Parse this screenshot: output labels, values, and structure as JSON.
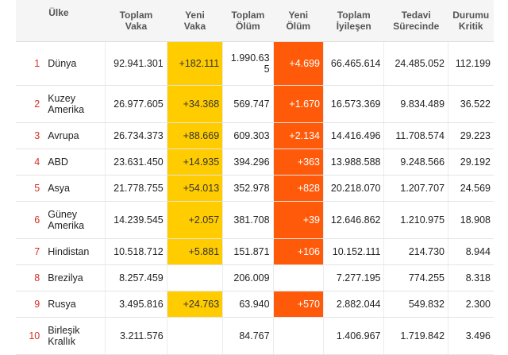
{
  "table": {
    "headers": {
      "country": "Ülke",
      "total_cases": [
        "Toplam",
        "Vaka"
      ],
      "new_cases": [
        "Yeni",
        "Vaka"
      ],
      "total_deaths": [
        "Toplam",
        "Ölüm"
      ],
      "new_deaths": [
        "Yeni",
        "Ölüm"
      ],
      "total_recovered": [
        "Toplam",
        "İyileşen"
      ],
      "active": [
        "Tedavi",
        "Sürecinde"
      ],
      "critical": [
        "Durumu",
        "Kritik"
      ]
    },
    "rows": [
      {
        "rank": "1",
        "country": [
          "Dünya"
        ],
        "total_cases": "92.941.301",
        "new_cases": "+182.111",
        "total_deaths": [
          "1.990.63",
          "5"
        ],
        "new_deaths": "+4.699",
        "total_recovered": "66.465.614",
        "active": "24.485.052",
        "critical": "112.199"
      },
      {
        "rank": "2",
        "country": [
          "Kuzey",
          "Amerika"
        ],
        "total_cases": "26.977.605",
        "new_cases": "+34.368",
        "total_deaths": [
          "569.747"
        ],
        "new_deaths": "+1.670",
        "total_recovered": "16.573.369",
        "active": "9.834.489",
        "critical": "36.522"
      },
      {
        "rank": "3",
        "country": [
          "Avrupa"
        ],
        "total_cases": "26.734.373",
        "new_cases": "+88.669",
        "total_deaths": [
          "609.303"
        ],
        "new_deaths": "+2.134",
        "total_recovered": "14.416.496",
        "active": "11.708.574",
        "critical": "29.223"
      },
      {
        "rank": "4",
        "country": [
          "ABD"
        ],
        "total_cases": "23.631.450",
        "new_cases": "+14.935",
        "total_deaths": [
          "394.296"
        ],
        "new_deaths": "+363",
        "total_recovered": "13.988.588",
        "active": "9.248.566",
        "critical": "29.192"
      },
      {
        "rank": "5",
        "country": [
          "Asya"
        ],
        "total_cases": "21.778.755",
        "new_cases": "+54.013",
        "total_deaths": [
          "352.978"
        ],
        "new_deaths": "+828",
        "total_recovered": "20.218.070",
        "active": "1.207.707",
        "critical": "24.569"
      },
      {
        "rank": "6",
        "country": [
          "Güney",
          "Amerika"
        ],
        "total_cases": "14.239.545",
        "new_cases": "+2.057",
        "total_deaths": [
          "381.708"
        ],
        "new_deaths": "+39",
        "total_recovered": "12.646.862",
        "active": "1.210.975",
        "critical": "18.908"
      },
      {
        "rank": "7",
        "country": [
          "Hindistan"
        ],
        "total_cases": "10.518.712",
        "new_cases": "+5.881",
        "total_deaths": [
          "151.871"
        ],
        "new_deaths": "+106",
        "total_recovered": "10.152.111",
        "active": "214.730",
        "critical": "8.944"
      },
      {
        "rank": "8",
        "country": [
          "Brezilya"
        ],
        "total_cases": "8.257.459",
        "new_cases": "",
        "total_deaths": [
          "206.009"
        ],
        "new_deaths": "",
        "total_recovered": "7.277.195",
        "active": "774.255",
        "critical": "8.318"
      },
      {
        "rank": "9",
        "country": [
          "Rusya"
        ],
        "total_cases": "3.495.816",
        "new_cases": "+24.763",
        "total_deaths": [
          "63.940"
        ],
        "new_deaths": "+570",
        "total_recovered": "2.882.044",
        "active": "549.832",
        "critical": "2.300"
      },
      {
        "rank": "10",
        "country": [
          "Birleşik",
          "Krallık"
        ],
        "total_cases": "3.211.576",
        "new_cases": "",
        "total_deaths": [
          "84.767"
        ],
        "new_deaths": "",
        "total_recovered": "1.406.967",
        "active": "1.719.842",
        "critical": "3.496"
      }
    ]
  },
  "colors": {
    "new_cases_highlight": "#ffcc00",
    "new_deaths_highlight": "#ff5a0a",
    "rank_color": "#d93025"
  }
}
